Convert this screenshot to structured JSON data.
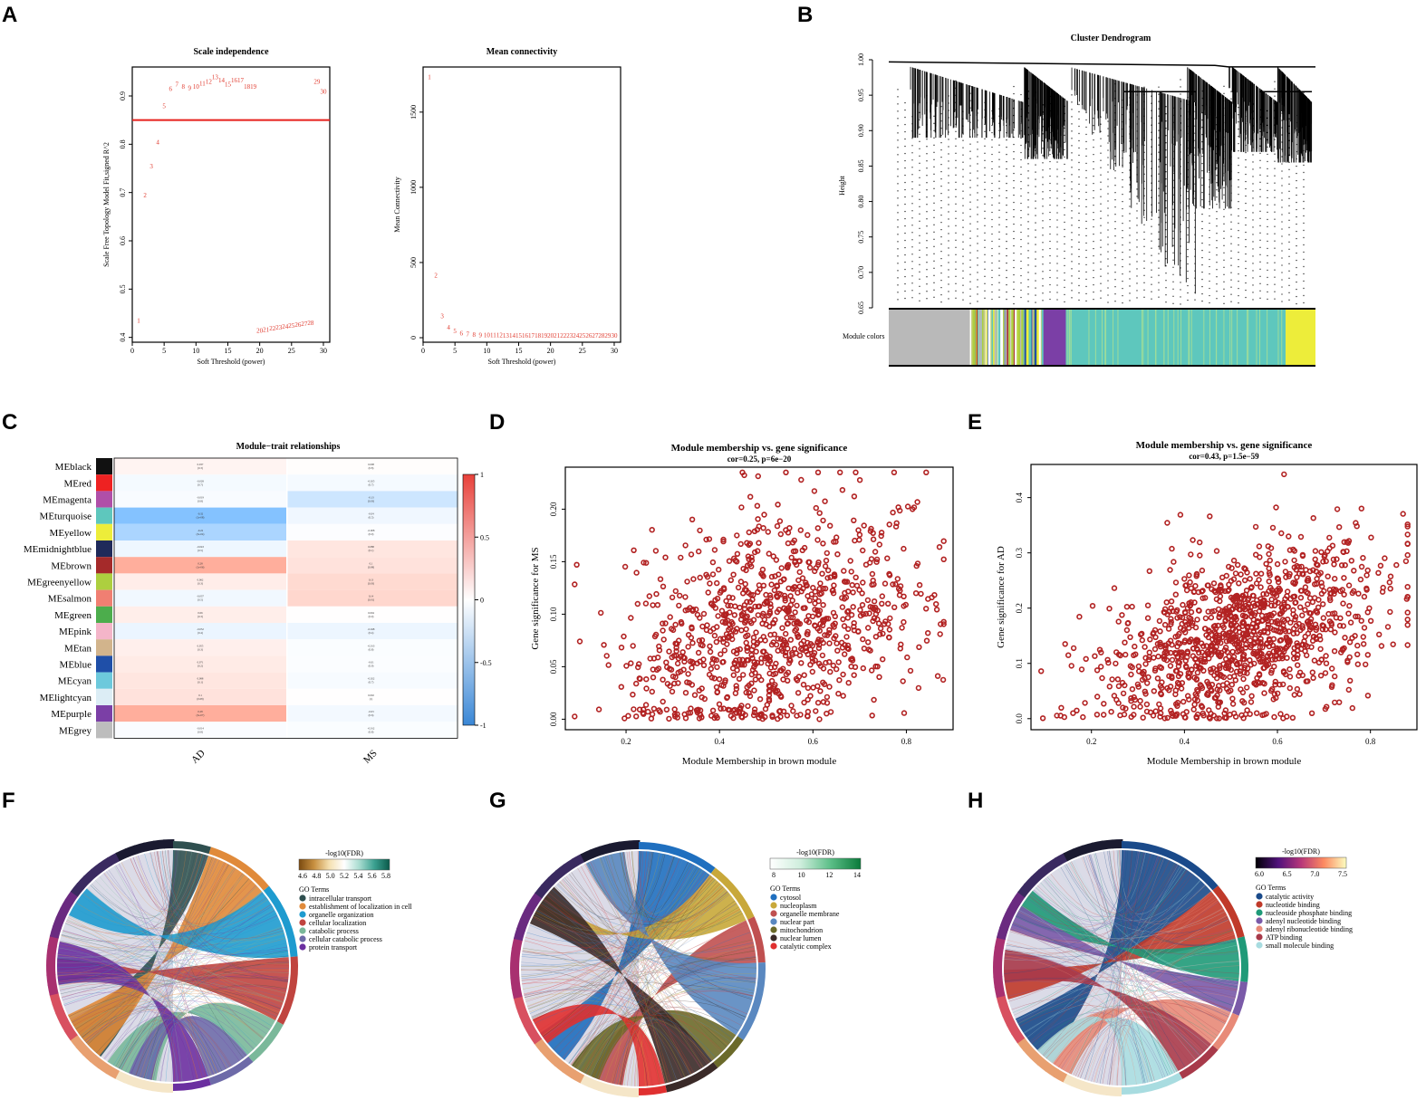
{
  "panel_labels": [
    "A",
    "B",
    "C",
    "D",
    "E",
    "F",
    "G",
    "H"
  ],
  "colors": {
    "threshold_line": "#e6201c",
    "point_text": "#e03a2e",
    "scatter": "#b22222",
    "dendro": "#000000"
  },
  "chart_data": [
    {
      "id": "A1",
      "type": "scatter",
      "title": "Scale independence",
      "xlabel": "Soft Threshold (power)",
      "ylabel": "Scale Free Topology Model Fit,signed R^2",
      "xlim": [
        0,
        31
      ],
      "ylim": [
        0.39,
        0.96
      ],
      "xticks": [
        "0",
        "5",
        "10",
        "15",
        "20",
        "25",
        "30"
      ],
      "yticks": [
        "0.4",
        "0.5",
        "0.6",
        "0.7",
        "0.8",
        "0.9"
      ],
      "threshold": 0.85,
      "points": [
        {
          "x": 1,
          "y": 0.43
        },
        {
          "x": 2,
          "y": 0.69
        },
        {
          "x": 3,
          "y": 0.75
        },
        {
          "x": 4,
          "y": 0.8
        },
        {
          "x": 5,
          "y": 0.875
        },
        {
          "x": 6,
          "y": 0.91
        },
        {
          "x": 7,
          "y": 0.92
        },
        {
          "x": 8,
          "y": 0.915
        },
        {
          "x": 9,
          "y": 0.912
        },
        {
          "x": 10,
          "y": 0.915
        },
        {
          "x": 11,
          "y": 0.922
        },
        {
          "x": 12,
          "y": 0.925
        },
        {
          "x": 13,
          "y": 0.935
        },
        {
          "x": 14,
          "y": 0.928
        },
        {
          "x": 15,
          "y": 0.92
        },
        {
          "x": 16,
          "y": 0.928
        },
        {
          "x": 17,
          "y": 0.928
        },
        {
          "x": 18,
          "y": 0.915
        },
        {
          "x": 19,
          "y": 0.915
        },
        {
          "x": 20,
          "y": 0.41
        },
        {
          "x": 21,
          "y": 0.412
        },
        {
          "x": 22,
          "y": 0.414
        },
        {
          "x": 23,
          "y": 0.416
        },
        {
          "x": 24,
          "y": 0.418
        },
        {
          "x": 25,
          "y": 0.42
        },
        {
          "x": 26,
          "y": 0.422
        },
        {
          "x": 27,
          "y": 0.424
        },
        {
          "x": 28,
          "y": 0.426
        },
        {
          "x": 29,
          "y": 0.925
        },
        {
          "x": 30,
          "y": 0.905
        }
      ]
    },
    {
      "id": "A2",
      "type": "scatter",
      "title": "Mean connectivity",
      "xlabel": "Soft Threshold (power)",
      "ylabel": "Mean Connectivity",
      "xlim": [
        0,
        31
      ],
      "ylim": [
        -30,
        1800
      ],
      "xticks": [
        "0",
        "5",
        "10",
        "15",
        "20",
        "25",
        "30"
      ],
      "yticks": [
        "0",
        "500",
        "1000",
        "1500"
      ],
      "points": [
        {
          "x": 1,
          "y": 1720
        },
        {
          "x": 2,
          "y": 400
        },
        {
          "x": 3,
          "y": 130
        },
        {
          "x": 4,
          "y": 55
        },
        {
          "x": 5,
          "y": 30
        },
        {
          "x": 6,
          "y": 15
        },
        {
          "x": 7,
          "y": 10
        },
        {
          "x": 8,
          "y": 6
        },
        {
          "x": 9,
          "y": 4
        },
        {
          "x": 10,
          "y": 3
        },
        {
          "x": 11,
          "y": 2
        },
        {
          "x": 12,
          "y": 2
        },
        {
          "x": 13,
          "y": 1
        },
        {
          "x": 14,
          "y": 1
        },
        {
          "x": 15,
          "y": 1
        },
        {
          "x": 16,
          "y": 1
        },
        {
          "x": 17,
          "y": 1
        },
        {
          "x": 18,
          "y": 1
        },
        {
          "x": 19,
          "y": 1
        },
        {
          "x": 20,
          "y": 1
        },
        {
          "x": 21,
          "y": 1
        },
        {
          "x": 22,
          "y": 1
        },
        {
          "x": 23,
          "y": 1
        },
        {
          "x": 24,
          "y": 1
        },
        {
          "x": 25,
          "y": 1
        },
        {
          "x": 26,
          "y": 1
        },
        {
          "x": 27,
          "y": 1
        },
        {
          "x": 28,
          "y": 1
        },
        {
          "x": 29,
          "y": 1
        },
        {
          "x": 30,
          "y": 1
        }
      ]
    },
    {
      "id": "B",
      "type": "dendrogram",
      "title": "Cluster Dendrogram",
      "ylabel": "Height",
      "ylim": [
        0.65,
        1.0
      ],
      "yticks": [
        "0.65",
        "0.70",
        "0.75",
        "0.80",
        "0.85",
        "0.90",
        "0.95",
        "1.00"
      ],
      "module_label": "Module colors",
      "modules": [
        {
          "name": "grey",
          "color": "#b9b9b9",
          "frac": 0.19
        },
        {
          "name": "greenyellow mix",
          "color": "#c7cf7a",
          "frac": 0.17
        },
        {
          "name": "purple",
          "color": "#7b3fa6",
          "frac": 0.055
        },
        {
          "name": "turquoise",
          "color": "#5ec7bd",
          "frac": 0.515
        },
        {
          "name": "yellow",
          "color": "#eded3a",
          "frac": 0.07
        }
      ]
    },
    {
      "id": "C",
      "type": "heatmap",
      "title": "Module−trait relationships",
      "columns": [
        "AD",
        "MS"
      ],
      "colorbar_ticks": [
        "1",
        "0.5",
        "0",
        "-0.5",
        "-1"
      ],
      "rows": [
        {
          "name": "MEblack",
          "color": "#111111",
          "AD": 0.037,
          "MS": 0.008,
          "ADt": "0.037\n(0.3)",
          "MSt": "0.008\n(0.8)"
        },
        {
          "name": "MEred",
          "color": "#ee2222",
          "AD": -0.028,
          "MS": -0.025,
          "ADt": "-0.028\n(0.7)",
          "MSt": "-0.025\n(0.7)"
        },
        {
          "name": "MEmagenta",
          "color": "#b04fa8",
          "AD": -0.019,
          "MS": -0.13,
          "ADt": "-0.019\n(0.8)",
          "MSt": "-0.13\n(0.03)"
        },
        {
          "name": "MEturquoise",
          "color": "#5ec7bd",
          "AD": -0.32,
          "MS": -0.04,
          "ADt": "-0.32\n(1e-08)",
          "MSt": "-0.04\n(0.5)"
        },
        {
          "name": "MEyellow",
          "color": "#eded3a",
          "AD": -0.22,
          "MS": -0.008,
          "ADt": "-0.22\n(3e-04)",
          "MSt": "-0.008\n(0.9)"
        },
        {
          "name": "MEmidnightblue",
          "color": "#1f2a5a",
          "AD": -0.043,
          "MS": 0.088,
          "ADt": "-0.043\n(0.5)",
          "MSt": "0.088\n(0.1)"
        },
        {
          "name": "MEbrown",
          "color": "#a52a2a",
          "AD": 0.28,
          "MS": 0.1,
          "ADt": "0.28\n(1e-06)",
          "MSt": "0.1\n(0.08)"
        },
        {
          "name": "MEgreenyellow",
          "color": "#adcf3f",
          "AD": 0.062,
          "MS": 0.13,
          "ADt": "0.062\n(0.3)",
          "MSt": "0.13\n(0.03)"
        },
        {
          "name": "MEsalmon",
          "color": "#f07f72",
          "AD": -0.037,
          "MS": 0.14,
          "ADt": "-0.037\n(0.5)",
          "MSt": "0.14\n(0.01)"
        },
        {
          "name": "MEgreen",
          "color": "#4cad4c",
          "AD": 0.06,
          "MS": 0.004,
          "ADt": "0.06\n(0.3)",
          "MSt": "0.004\n(0.9)"
        },
        {
          "name": "MEpink",
          "color": "#f4b5c9",
          "AD": -0.052,
          "MS": -0.048,
          "ADt": "-0.052\n(0.4)",
          "MSt": "-0.048\n(0.4)"
        },
        {
          "name": "MEtan",
          "color": "#d2b48c",
          "AD": 0.055,
          "MS": -0.013,
          "ADt": "0.055\n(0.3)",
          "MSt": "-0.013\n(0.8)"
        },
        {
          "name": "MEblue",
          "color": "#1f4fa8",
          "AD": 0.071,
          "MS": -0.01,
          "ADt": "0.071\n(0.2)",
          "MSt": "-0.01\n(0.9)"
        },
        {
          "name": "MEcyan",
          "color": "#6dc9dc",
          "AD": 0.088,
          "MS": -0.022,
          "ADt": "0.088\n(0.1)",
          "MSt": "-0.022\n(0.7)"
        },
        {
          "name": "MElightcyan",
          "color": "#dcedf5",
          "AD": 0.1,
          "MS": 0.002,
          "ADt": "0.1\n(0.08)",
          "MSt": "0.002\n(1)"
        },
        {
          "name": "MEpurple",
          "color": "#7b3fa6",
          "AD": 0.28,
          "MS": -0.03,
          "ADt": "0.28\n(3e-07)",
          "MSt": "-0.03\n(0.6)"
        },
        {
          "name": "MEgrey",
          "color": "#bdbdbd",
          "AD": -0.014,
          "MS": -0.012,
          "ADt": "-0.014\n(0.8)",
          "MSt": "-0.012\n(0.8)"
        }
      ]
    },
    {
      "id": "D",
      "type": "scatter",
      "title": "Module membership vs. gene significance",
      "subtitle": "cor=0.25, p=6e−20",
      "xlabel": "Module Membership in brown module",
      "ylabel": "Gene significance for MS",
      "xlim": [
        0.07,
        0.9
      ],
      "ylim": [
        -0.01,
        0.24
      ],
      "xticks": [
        "0.2",
        "0.4",
        "0.6",
        "0.8"
      ],
      "yticks": [
        "0.00",
        "0.05",
        "0.10",
        "0.15",
        "0.20"
      ],
      "n_points": 1000,
      "cor": 0.25,
      "x_mean": 0.52,
      "x_sd": 0.15,
      "y_mean": 0.085,
      "y_sd": 0.055,
      "seed": 7
    },
    {
      "id": "E",
      "type": "scatter",
      "title": "Module membership vs. gene significance",
      "subtitle": "cor=0.43, p=1.5e−59",
      "xlabel": "Module Membership in brown module",
      "ylabel": "Gene significance for AD",
      "xlim": [
        0.07,
        0.9
      ],
      "ylim": [
        -0.02,
        0.46
      ],
      "xticks": [
        "0.2",
        "0.4",
        "0.6",
        "0.8"
      ],
      "yticks": [
        "0.0",
        "0.1",
        "0.2",
        "0.3",
        "0.4"
      ],
      "n_points": 1200,
      "cor": 0.43,
      "x_mean": 0.52,
      "x_sd": 0.15,
      "y_mean": 0.15,
      "y_sd": 0.085,
      "seed": 11
    },
    {
      "id": "F",
      "type": "chord",
      "legend_title": "-log10(FDR)",
      "scale_ticks": [
        "4.6",
        "4.8",
        "5.0",
        "5.2",
        "5.4",
        "5.6",
        "5.8"
      ],
      "scale_colors": [
        "#7a4a10",
        "#c89040",
        "#f5e0b0",
        "#ffffff",
        "#a8dcd0",
        "#3aa090",
        "#0a5a4a"
      ],
      "terms_title": "GO Terms",
      "terms": [
        {
          "label": "intracellular transport",
          "color": "#2f4f4f"
        },
        {
          "label": "establishment of localization in cell",
          "color": "#e08a3a"
        },
        {
          "label": "organelle organization",
          "color": "#1e9bcf"
        },
        {
          "label": "cellular localization",
          "color": "#c0443f"
        },
        {
          "label": "catabolic process",
          "color": "#7ab89a"
        },
        {
          "label": "cellular catabolic process",
          "color": "#6d6aa8"
        },
        {
          "label": "protein transport",
          "color": "#6b2fa0"
        }
      ]
    },
    {
      "id": "G",
      "type": "chord",
      "legend_title": "-log10(FDR)",
      "scale_ticks": [
        "8",
        "10",
        "12",
        "14"
      ],
      "scale_colors": [
        "#ffffff",
        "#cfeedd",
        "#5cbf88",
        "#0a7a3a"
      ],
      "terms_title": "GO Terms",
      "terms": [
        {
          "label": "cytosol",
          "color": "#1f6fbf"
        },
        {
          "label": "nucleoplasm",
          "color": "#c8a83a"
        },
        {
          "label": "organelle membrane",
          "color": "#c05050"
        },
        {
          "label": "nuclear part",
          "color": "#5a88c0"
        },
        {
          "label": "mitochondrion",
          "color": "#6b6a2a"
        },
        {
          "label": "nuclear lumen",
          "color": "#3a2a28"
        },
        {
          "label": "catalytic complex",
          "color": "#e03030"
        }
      ]
    },
    {
      "id": "H",
      "type": "chord",
      "legend_title": "-log10(FDR)",
      "scale_ticks": [
        "6.0",
        "6.5",
        "7.0",
        "7.5"
      ],
      "scale_colors": [
        "#000004",
        "#51127c",
        "#b73779",
        "#fc8961",
        "#fcfdbf"
      ],
      "terms_title": "GO Terms",
      "terms": [
        {
          "label": "catalytic activity",
          "color": "#1a4a8a"
        },
        {
          "label": "nucleotide binding",
          "color": "#c03a2a"
        },
        {
          "label": "nucleoside phosphate binding",
          "color": "#1f9a78"
        },
        {
          "label": "adenyl nucleotide binding",
          "color": "#7a5aa8"
        },
        {
          "label": "adenyl ribonucleotide binding",
          "color": "#e88a78"
        },
        {
          "label": "ATP binding",
          "color": "#a83a4a"
        },
        {
          "label": "small molecule binding",
          "color": "#a8dce0"
        }
      ]
    }
  ]
}
